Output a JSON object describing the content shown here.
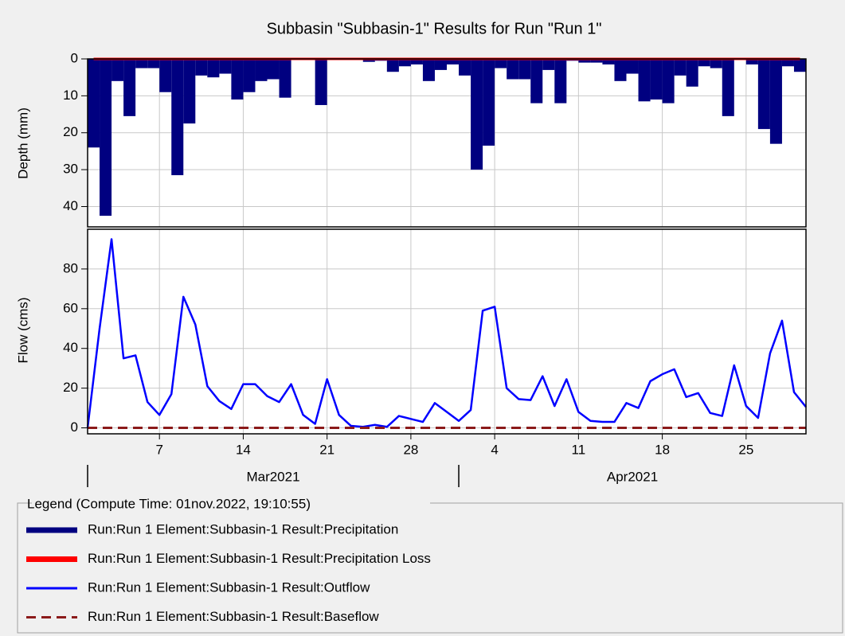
{
  "chart_data": [
    {
      "type": "bar",
      "title": "Subbasin \"Subbasin-1\" Results for Run \"Run 1\"",
      "y_label": "Depth (mm)",
      "inverted": true,
      "grid": true,
      "legend_title": "Legend (Compute Time: 01nov.2022, 19:10:55)",
      "xlim": [
        0,
        60
      ],
      "ylim": [
        0,
        45.5
      ],
      "yticks": [
        0,
        10,
        20,
        30,
        40
      ],
      "x": [
        0,
        1,
        2,
        3,
        4,
        5,
        6,
        7,
        8,
        9,
        10,
        11,
        12,
        13,
        14,
        15,
        16,
        17,
        18,
        19,
        20,
        21,
        22,
        23,
        24,
        25,
        26,
        27,
        28,
        29,
        30,
        31,
        32,
        33,
        34,
        35,
        36,
        37,
        38,
        39,
        40,
        41,
        42,
        43,
        44,
        45,
        46,
        47,
        48,
        49,
        50,
        51,
        52,
        53,
        54,
        55,
        56,
        57,
        58,
        59
      ],
      "series": [
        {
          "name": "Run:Run 1 Element:Subbasin-1 Result:Precipitation",
          "color": "#000080",
          "values": [
            24,
            42.5,
            6,
            15.5,
            2.5,
            2.5,
            9,
            31.5,
            17.5,
            4.5,
            5,
            4,
            11,
            9,
            6,
            5.5,
            10.5,
            0,
            0,
            12.5,
            0.3,
            0.3,
            0.3,
            0.8,
            0.5,
            3.5,
            2,
            1.5,
            6,
            3,
            1.5,
            4.5,
            30,
            23.5,
            2.5,
            5.5,
            5.5,
            12,
            3,
            12,
            0.5,
            1,
            1,
            1.5,
            6,
            4,
            11.5,
            11,
            12,
            4.5,
            7.5,
            2,
            2.5,
            15.5,
            0.3,
            1.5,
            19,
            23,
            2,
            3.5
          ]
        },
        {
          "name": "Run:Run 1 Element:Subbasin-1 Result:Precipitation Loss",
          "color": "#ff0000",
          "style": "line",
          "values": [
            0,
            0,
            0,
            0,
            0,
            0,
            0,
            0,
            0,
            0,
            0,
            0,
            0,
            0,
            0,
            0,
            0,
            0,
            0,
            0,
            0,
            0,
            0,
            0,
            0,
            0,
            0,
            0,
            0,
            0,
            0,
            0,
            0,
            0,
            0,
            0,
            0,
            0,
            0,
            0,
            0,
            0,
            0,
            0,
            0,
            0,
            0,
            0,
            0,
            0,
            0,
            0,
            0,
            0,
            0,
            0,
            0,
            0,
            0,
            0
          ]
        }
      ]
    },
    {
      "type": "line",
      "y_label": "Flow (cms)",
      "grid": true,
      "xlim": [
        0,
        60
      ],
      "ylim": [
        -3,
        100
      ],
      "yticks": [
        0,
        20,
        40,
        60,
        80
      ],
      "xticks": [
        {
          "value": 6,
          "label": "7"
        },
        {
          "value": 13,
          "label": "14"
        },
        {
          "value": 20,
          "label": "21"
        },
        {
          "value": 27,
          "label": "28"
        },
        {
          "value": 34,
          "label": "4"
        },
        {
          "value": 41,
          "label": "11"
        },
        {
          "value": 48,
          "label": "18"
        },
        {
          "value": 55,
          "label": "25"
        }
      ],
      "months": [
        {
          "start": 0,
          "label": "Mar2021"
        },
        {
          "start": 31,
          "label": "Apr2021"
        }
      ],
      "x": [
        0,
        1,
        2,
        3,
        4,
        5,
        6,
        7,
        8,
        9,
        10,
        11,
        12,
        13,
        14,
        15,
        16,
        17,
        18,
        19,
        20,
        21,
        22,
        23,
        24,
        25,
        26,
        27,
        28,
        29,
        30,
        31,
        32,
        33,
        34,
        35,
        36,
        37,
        38,
        39,
        40,
        41,
        42,
        43,
        44,
        45,
        46,
        47,
        48,
        49,
        50,
        51,
        52,
        53,
        54,
        55,
        56,
        57,
        58,
        59,
        60
      ],
      "series": [
        {
          "name": "Run:Run 1 Element:Subbasin-1 Result:Outflow",
          "color": "#0000ff",
          "values": [
            0,
            50,
            95,
            35,
            36.5,
            13,
            6.5,
            17,
            66,
            52,
            21,
            13.5,
            9.5,
            22,
            22,
            16,
            13,
            22,
            6.5,
            2,
            24.5,
            6.5,
            1,
            0.5,
            1.5,
            0.5,
            6,
            4.5,
            3,
            12.5,
            8,
            3.5,
            9,
            59,
            61,
            20,
            14.5,
            14,
            26,
            11,
            24.5,
            8,
            3.5,
            3,
            3,
            12.5,
            10,
            23.5,
            27,
            29.5,
            15.5,
            17.5,
            7.5,
            6,
            31.5,
            11,
            5,
            37.5,
            54,
            18,
            10.5
          ]
        },
        {
          "name": "Run:Run 1 Element:Subbasin-1 Result:Baseflow",
          "color": "#8b1a1a",
          "dash": true,
          "values": [
            0,
            0,
            0,
            0,
            0,
            0,
            0,
            0,
            0,
            0,
            0,
            0,
            0,
            0,
            0,
            0,
            0,
            0,
            0,
            0,
            0,
            0,
            0,
            0,
            0,
            0,
            0,
            0,
            0,
            0,
            0,
            0,
            0,
            0,
            0,
            0,
            0,
            0,
            0,
            0,
            0,
            0,
            0,
            0,
            0,
            0,
            0,
            0,
            0,
            0,
            0,
            0,
            0,
            0,
            0,
            0,
            0,
            0,
            0,
            0,
            0
          ]
        }
      ]
    }
  ]
}
